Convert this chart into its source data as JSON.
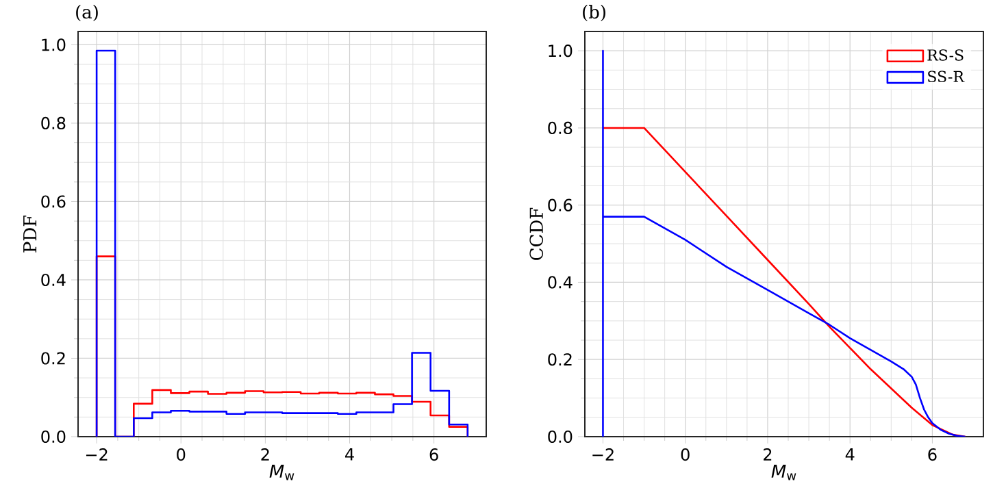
{
  "chart_data": [
    {
      "type": "histogram",
      "title": "(a)",
      "xlabel": "*M*$_{w}$",
      "ylabel": "PDF",
      "grid": true,
      "bins": [
        -2,
        -1.56,
        -1.12,
        -0.68,
        -0.24,
        0.2,
        0.64,
        1.08,
        1.52,
        1.96,
        2.4,
        2.84,
        3.28,
        3.72,
        4.16,
        4.6,
        5.04,
        5.48,
        5.92,
        6.36,
        6.8
      ],
      "series": [
        {
          "color": "#ff0000",
          "values": [
            0.46,
            0,
            0.084,
            0.119,
            0.111,
            0.115,
            0.109,
            0.112,
            0.116,
            0.113,
            0.114,
            0.11,
            0.112,
            0.11,
            0.112,
            0.108,
            0.104,
            0.089,
            0.054,
            0.025
          ]
        },
        {
          "color": "#0000ff",
          "values": [
            0.985,
            0,
            0.047,
            0.062,
            0.066,
            0.064,
            0.064,
            0.058,
            0.062,
            0.062,
            0.06,
            0.06,
            0.06,
            0.058,
            0.062,
            0.062,
            0.083,
            0.214,
            0.117,
            0.031
          ]
        }
      ],
      "xlim": [
        -2.44,
        7.24
      ],
      "ylim": [
        0,
        1.034
      ],
      "xticks": [
        {
          "value": -2,
          "label": "−2"
        },
        0,
        2,
        4,
        6
      ],
      "yticks": [
        {
          "value": 0,
          "label": "0.0"
        },
        {
          "value": 0.2,
          "label": "0.2"
        },
        {
          "value": 0.4,
          "label": "0.4"
        },
        {
          "value": 0.6,
          "label": "0.6"
        },
        {
          "value": 0.8,
          "label": "0.8"
        },
        {
          "value": 1,
          "label": "1.0"
        }
      ]
    },
    {
      "type": "line",
      "title": "(b)",
      "xlabel": "*M*$_{w}$",
      "ylabel": "CCDF",
      "grid": true,
      "legend": "top right",
      "series": [
        {
          "name": "RS-S",
          "color": "#ff0000",
          "x": [
            -2,
            -1,
            0,
            1,
            2,
            3,
            3.5,
            4,
            4.5,
            5,
            5.5,
            6,
            6.5,
            6.8
          ],
          "values": [
            0.8,
            0.8,
            0.686,
            0.572,
            0.458,
            0.344,
            0.285,
            0.23,
            0.175,
            0.125,
            0.075,
            0.03,
            0.005,
            0
          ]
        },
        {
          "name": "SS-R",
          "color": "#0000ff",
          "x": [
            -2,
            -2,
            -2,
            -1,
            0,
            1,
            2,
            3,
            3.5,
            4,
            4.5,
            5,
            5.3,
            5.5,
            5.6,
            5.7,
            5.8,
            5.9,
            6,
            6.2,
            6.4,
            6.6,
            6.8
          ],
          "values": [
            0,
            1,
            0.57,
            0.57,
            0.51,
            0.44,
            0.38,
            0.32,
            0.29,
            0.255,
            0.225,
            0.195,
            0.175,
            0.155,
            0.135,
            0.1,
            0.07,
            0.05,
            0.035,
            0.018,
            0.008,
            0.002,
            0
          ]
        }
      ],
      "xlim": [
        -2.44,
        7.24
      ],
      "ylim": [
        0,
        1.05
      ],
      "xticks": [
        {
          "value": -2,
          "label": "−2"
        },
        0,
        2,
        4,
        6
      ],
      "yticks": [
        {
          "value": 0,
          "label": "0.0"
        },
        {
          "value": 0.2,
          "label": "0.2"
        },
        {
          "value": 0.4,
          "label": "0.4"
        },
        {
          "value": 0.6,
          "label": "0.6"
        },
        {
          "value": 0.8,
          "label": "0.8"
        },
        {
          "value": 1,
          "label": "1.0"
        }
      ]
    }
  ]
}
